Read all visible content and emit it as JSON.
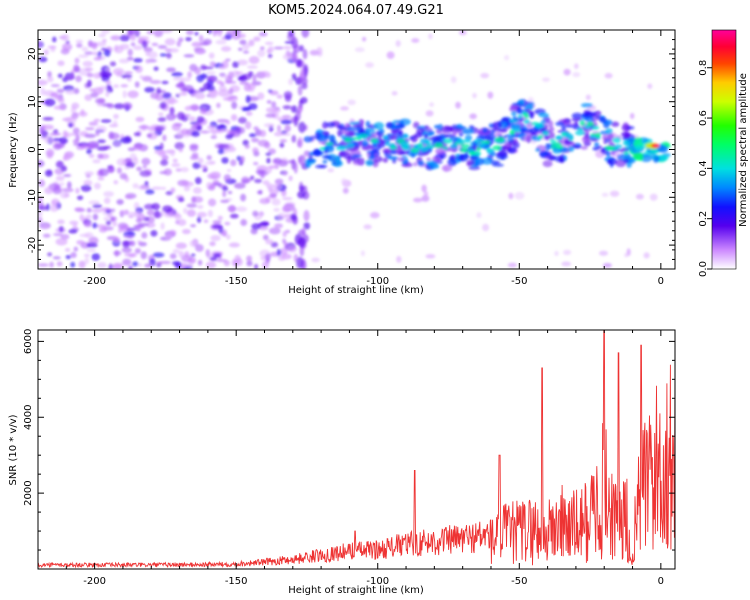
{
  "title": "KOM5.2024.064.07.49.G21",
  "chart_data": [
    {
      "type": "heatmap",
      "xlabel": "Height of straight line (km)",
      "ylabel": "Frequency (Hz)",
      "xlim": [
        -220,
        5
      ],
      "ylim": [
        -25,
        25
      ],
      "xticks": [
        -200,
        -150,
        -100,
        -50,
        0
      ],
      "yticks": [
        -20,
        -10,
        0,
        10,
        20
      ],
      "colorbar": {
        "label": "Normalized spectral amplitude",
        "range": [
          0.0,
          0.95
        ],
        "ticks": [
          0.0,
          0.2,
          0.4,
          0.6,
          0.8
        ],
        "colormap": "gist_rainbow (violet → red)"
      },
      "description_regions": [
        {
          "x_range": [
            -220,
            -130
          ],
          "freq_range": [
            -25,
            25
          ],
          "amplitude": [
            0.0,
            0.2
          ],
          "pattern": "broadband noise"
        },
        {
          "x_range": [
            -130,
            -125
          ],
          "freq_range": [
            -25,
            25
          ],
          "amplitude": [
            0.1,
            0.2
          ],
          "pattern": "vertical streak"
        },
        {
          "x_range": [
            -125,
            -10
          ],
          "freq_range": [
            -5,
            8
          ],
          "amplitude": [
            0.1,
            0.45
          ],
          "pattern": "signal band near 0 Hz, curving up near -50 and -25 km"
        },
        {
          "x_range": [
            -10,
            3
          ],
          "freq_range": [
            -2,
            3
          ],
          "amplitude": [
            0.3,
            0.95
          ],
          "pattern": "strong peak near 0 Hz"
        }
      ]
    },
    {
      "type": "line",
      "xlabel": "Height of straight line (km)",
      "ylabel": "SNR (10 * v/v)",
      "xlim": [
        -220,
        5
      ],
      "ylim": [
        0,
        6300
      ],
      "xticks": [
        -200,
        -150,
        -100,
        -50,
        0
      ],
      "yticks": [
        2000,
        4000,
        6000
      ],
      "color": "#ee3333",
      "series": [
        {
          "x": [
            -220,
            -200,
            -180,
            -160,
            -150,
            -140,
            -130,
            -120,
            -110,
            -100,
            -90,
            -80,
            -70,
            -60,
            -55,
            -50,
            -45,
            -40,
            -35,
            -30,
            -25,
            -20,
            -15,
            -10,
            -5,
            0,
            5
          ],
          "y": [
            150,
            150,
            150,
            160,
            180,
            250,
            350,
            500,
            650,
            700,
            900,
            1000,
            1100,
            1250,
            1600,
            1700,
            1800,
            1650,
            2100,
            1900,
            2300,
            3700,
            2000,
            2600,
            4000,
            4800,
            5000
          ]
        }
      ],
      "notable_peaks": [
        {
          "x": -108,
          "y": 1000
        },
        {
          "x": -87,
          "y": 2600
        },
        {
          "x": -57,
          "y": 3000
        },
        {
          "x": -42,
          "y": 5300
        },
        {
          "x": -20,
          "y": 6300
        },
        {
          "x": -15,
          "y": 5700
        },
        {
          "x": -7,
          "y": 5900
        }
      ]
    }
  ]
}
